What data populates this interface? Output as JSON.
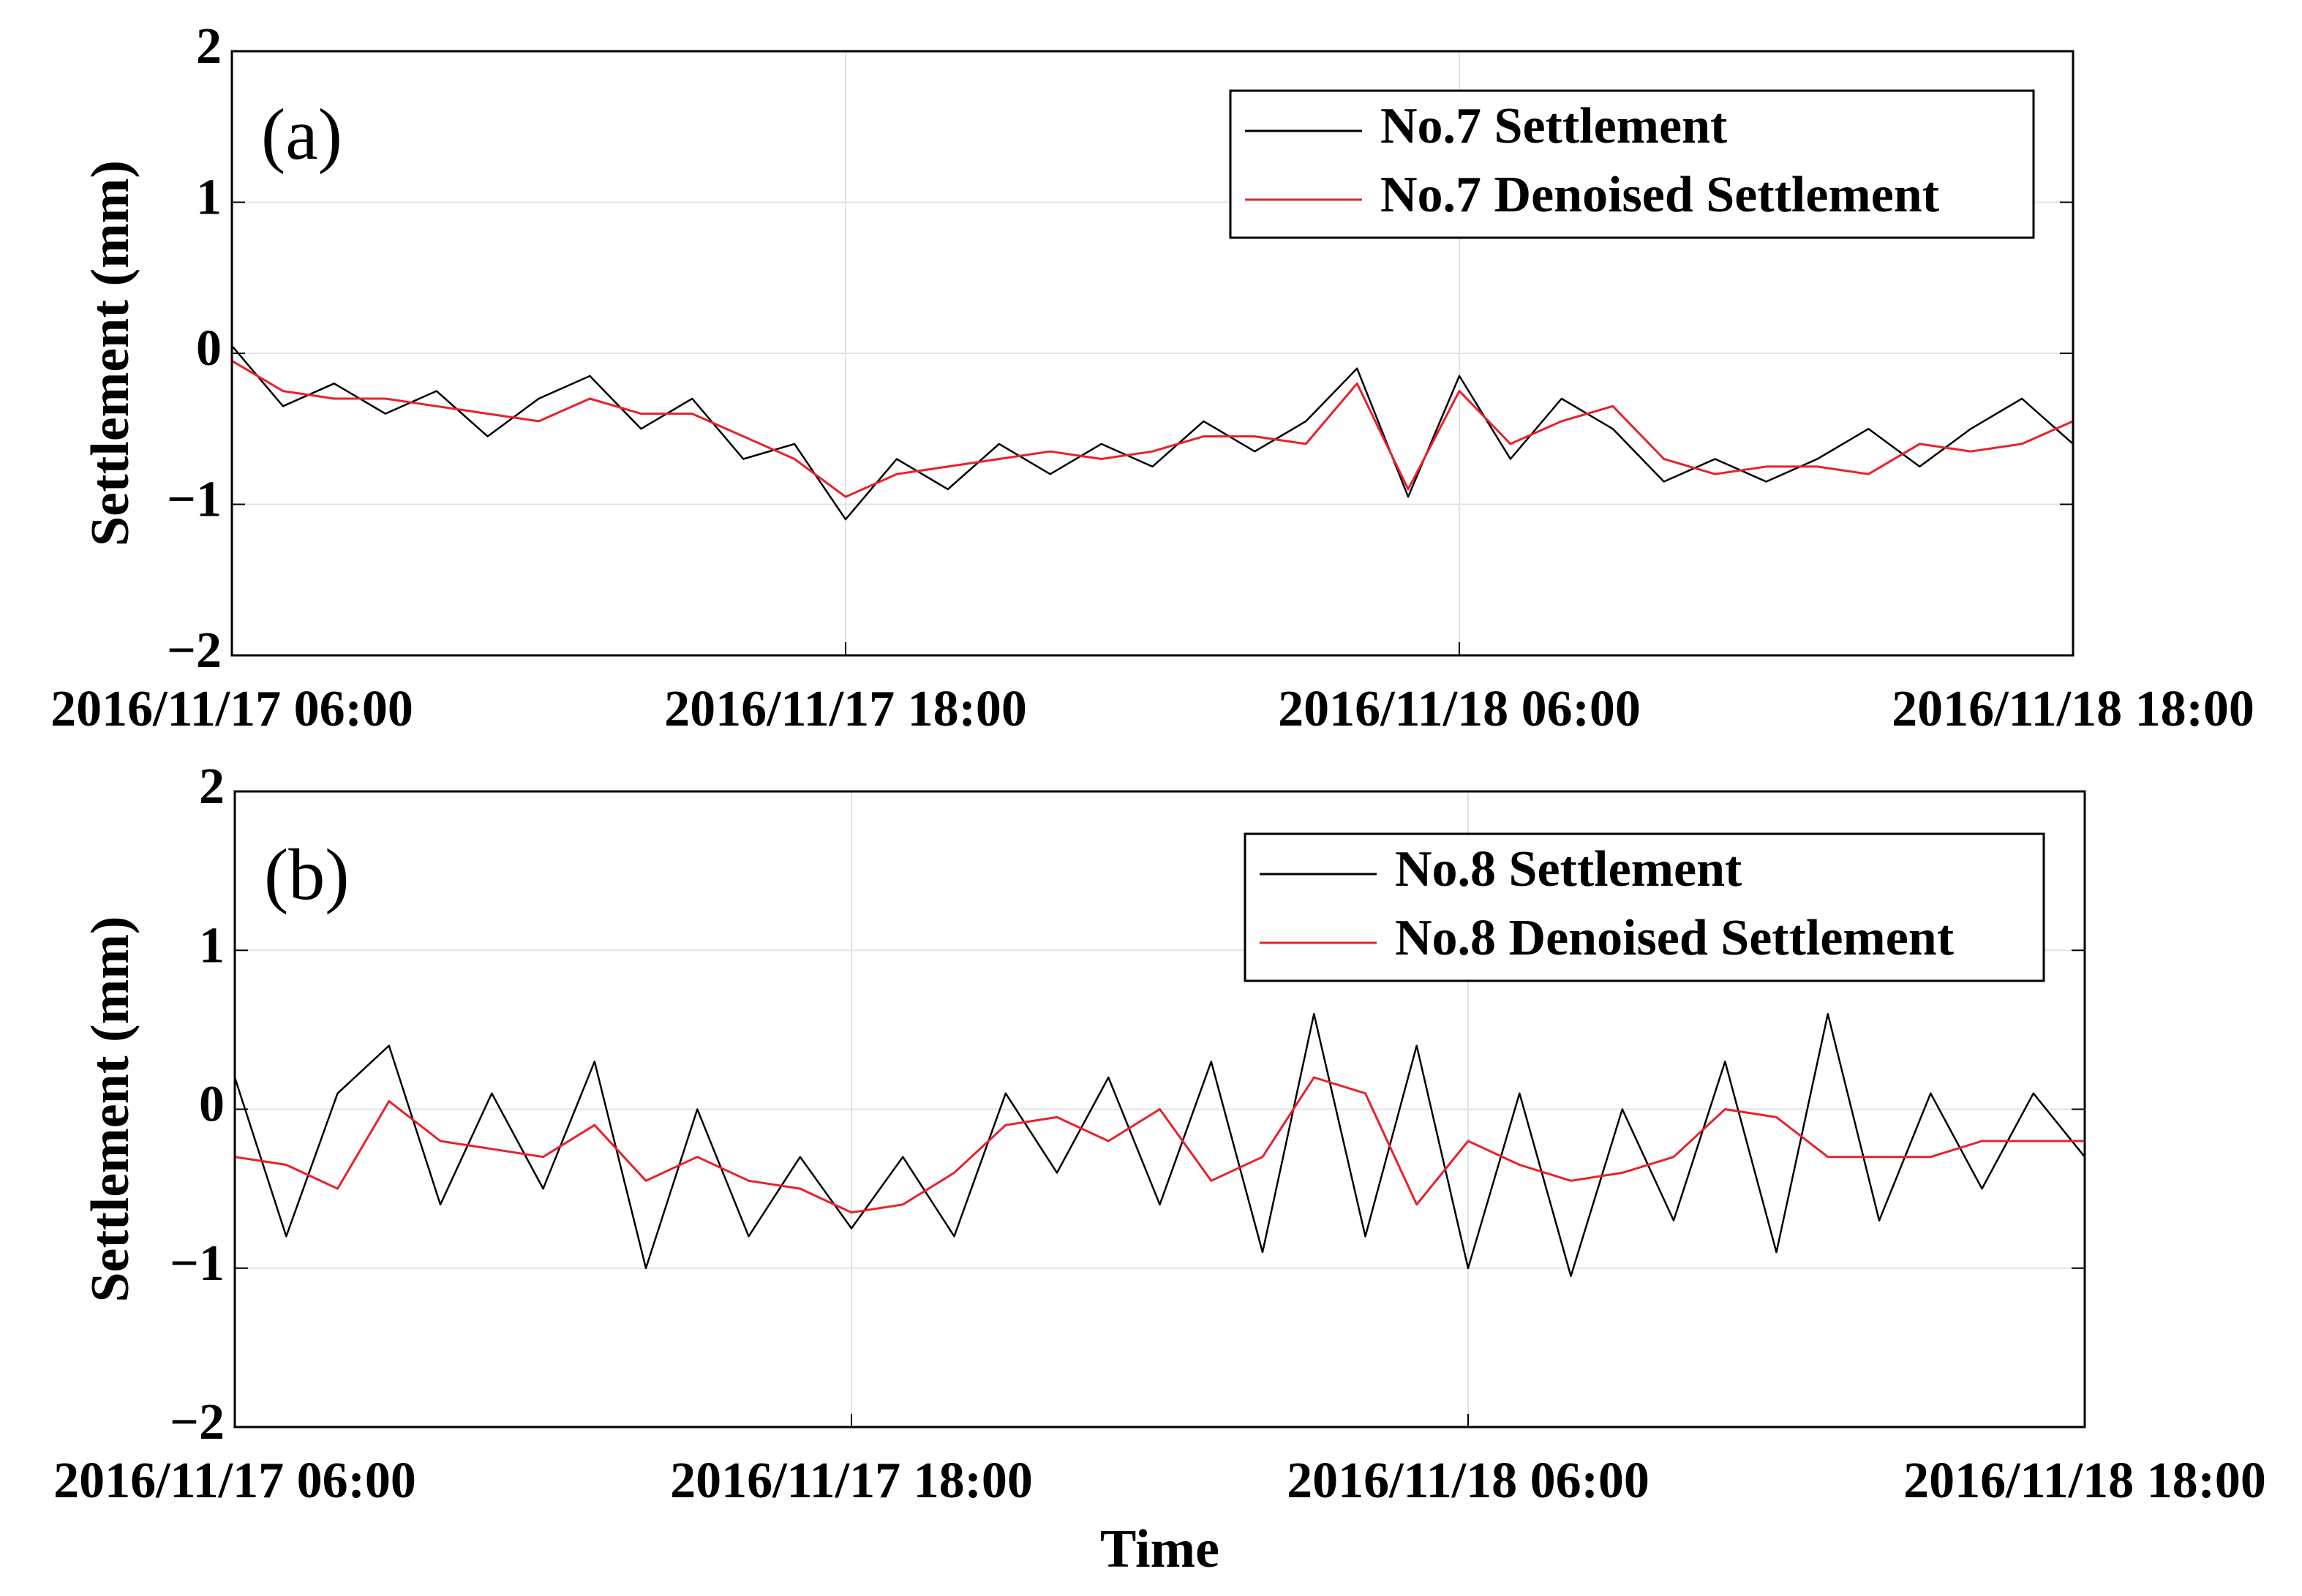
{
  "chart_data": [
    {
      "type": "line",
      "annotation": "(a)",
      "y_label": "Settlement (mm)",
      "x": [
        "2016/11/17 06:00",
        "2016/11/17 07:00",
        "2016/11/17 08:00",
        "2016/11/17 09:00",
        "2016/11/17 10:00",
        "2016/11/17 11:00",
        "2016/11/17 12:00",
        "2016/11/17 13:00",
        "2016/11/17 14:00",
        "2016/11/17 15:00",
        "2016/11/17 16:00",
        "2016/11/17 17:00",
        "2016/11/17 18:00",
        "2016/11/17 19:00",
        "2016/11/17 20:00",
        "2016/11/17 21:00",
        "2016/11/17 22:00",
        "2016/11/17 23:00",
        "2016/11/18 00:00",
        "2016/11/18 01:00",
        "2016/11/18 02:00",
        "2016/11/18 03:00",
        "2016/11/18 04:00",
        "2016/11/18 05:00",
        "2016/11/18 06:00",
        "2016/11/18 07:00",
        "2016/11/18 08:00",
        "2016/11/18 09:00",
        "2016/11/18 10:00",
        "2016/11/18 11:00",
        "2016/11/18 12:00",
        "2016/11/18 13:00",
        "2016/11/18 14:00",
        "2016/11/18 15:00",
        "2016/11/18 16:00",
        "2016/11/18 17:00",
        "2016/11/18 18:00"
      ],
      "series": [
        {
          "name": "No.7 Settlement",
          "color": "#000000",
          "values": [
            0.05,
            -0.35,
            -0.2,
            -0.4,
            -0.25,
            -0.55,
            -0.3,
            -0.15,
            -0.5,
            -0.3,
            -0.7,
            -0.6,
            -1.1,
            -0.7,
            -0.9,
            -0.6,
            -0.8,
            -0.6,
            -0.75,
            -0.45,
            -0.65,
            -0.45,
            -0.1,
            -0.95,
            -0.15,
            -0.7,
            -0.3,
            -0.5,
            -0.85,
            -0.7,
            -0.85,
            -0.7,
            -0.5,
            -0.75,
            -0.5,
            -0.3,
            -0.6
          ]
        },
        {
          "name": "No.7 Denoised Settlement",
          "color": "#e8212b",
          "values": [
            -0.05,
            -0.25,
            -0.3,
            -0.3,
            -0.35,
            -0.4,
            -0.45,
            -0.3,
            -0.4,
            -0.4,
            -0.55,
            -0.7,
            -0.95,
            -0.8,
            -0.75,
            -0.7,
            -0.65,
            -0.7,
            -0.65,
            -0.55,
            -0.55,
            -0.6,
            -0.2,
            -0.9,
            -0.25,
            -0.6,
            -0.45,
            -0.35,
            -0.7,
            -0.8,
            -0.75,
            -0.75,
            -0.8,
            -0.6,
            -0.65,
            -0.6,
            -0.45
          ]
        }
      ],
      "xlim": [
        "2016/11/17 06:00",
        "2016/11/18 18:00"
      ],
      "xticks": [
        "2016/11/17 06:00",
        "2016/11/17 18:00",
        "2016/11/18 06:00",
        "2016/11/18 18:00"
      ],
      "ylim": [
        -2,
        2
      ],
      "yticks": [
        {
          "value": -2,
          "label": "−2"
        },
        {
          "value": -1,
          "label": "−1"
        },
        0,
        1,
        2
      ],
      "grid": true,
      "legend": "upper right"
    },
    {
      "type": "line",
      "annotation": "(b)",
      "y_label": "Settlement (mm)",
      "x_label": "Time",
      "x": [
        "2016/11/17 06:00",
        "2016/11/17 07:00",
        "2016/11/17 08:00",
        "2016/11/17 09:00",
        "2016/11/17 10:00",
        "2016/11/17 11:00",
        "2016/11/17 12:00",
        "2016/11/17 13:00",
        "2016/11/17 14:00",
        "2016/11/17 15:00",
        "2016/11/17 16:00",
        "2016/11/17 17:00",
        "2016/11/17 18:00",
        "2016/11/17 19:00",
        "2016/11/17 20:00",
        "2016/11/17 21:00",
        "2016/11/17 22:00",
        "2016/11/17 23:00",
        "2016/11/18 00:00",
        "2016/11/18 01:00",
        "2016/11/18 02:00",
        "2016/11/18 03:00",
        "2016/11/18 04:00",
        "2016/11/18 05:00",
        "2016/11/18 06:00",
        "2016/11/18 07:00",
        "2016/11/18 08:00",
        "2016/11/18 09:00",
        "2016/11/18 10:00",
        "2016/11/18 11:00",
        "2016/11/18 12:00",
        "2016/11/18 13:00",
        "2016/11/18 14:00",
        "2016/11/18 15:00",
        "2016/11/18 16:00",
        "2016/11/18 17:00",
        "2016/11/18 18:00"
      ],
      "series": [
        {
          "name": "No.8 Settlement",
          "color": "#000000",
          "values": [
            0.2,
            -0.8,
            0.1,
            0.4,
            -0.6,
            0.1,
            -0.5,
            0.3,
            -1.0,
            0.0,
            -0.8,
            -0.3,
            -0.75,
            -0.3,
            -0.8,
            0.1,
            -0.4,
            0.2,
            -0.6,
            0.3,
            -0.9,
            0.6,
            -0.8,
            0.4,
            -1.0,
            0.1,
            -1.05,
            0.0,
            -0.7,
            0.3,
            -0.9,
            0.6,
            -0.7,
            0.1,
            -0.5,
            0.1,
            -0.3
          ]
        },
        {
          "name": "No.8 Denoised Settlement",
          "color": "#e8212b",
          "values": [
            -0.3,
            -0.35,
            -0.5,
            0.05,
            -0.2,
            -0.25,
            -0.3,
            -0.1,
            -0.45,
            -0.3,
            -0.45,
            -0.5,
            -0.65,
            -0.6,
            -0.4,
            -0.1,
            -0.05,
            -0.2,
            0.0,
            -0.45,
            -0.3,
            0.2,
            0.1,
            -0.6,
            -0.2,
            -0.35,
            -0.45,
            -0.4,
            -0.3,
            0.0,
            -0.05,
            -0.3,
            -0.3,
            -0.3,
            -0.2,
            -0.2,
            -0.2
          ]
        }
      ],
      "xlim": [
        "2016/11/17 06:00",
        "2016/11/18 18:00"
      ],
      "xticks": [
        "2016/11/17 06:00",
        "2016/11/17 18:00",
        "2016/11/18 06:00",
        "2016/11/18 18:00"
      ],
      "ylim": [
        -2,
        2
      ],
      "yticks": [
        {
          "value": -2,
          "label": "−2"
        },
        {
          "value": -1,
          "label": "−1"
        },
        0,
        1,
        2
      ],
      "grid": true,
      "legend": "upper right"
    }
  ]
}
